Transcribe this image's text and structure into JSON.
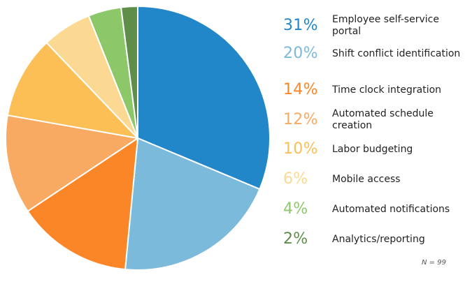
{
  "chart_data": {
    "type": "pie",
    "categories": [
      "Employee self-service portal",
      "Shift conflict identification",
      "Time clock integration",
      "Automated schedule creation",
      "Labor budgeting",
      "Mobile access",
      "Automated notifications",
      "Analytics/reporting"
    ],
    "values": [
      31,
      20,
      14,
      12,
      10,
      6,
      4,
      2
    ],
    "value_labels": [
      "31%",
      "20%",
      "14%",
      "12%",
      "10%",
      "6%",
      "4%",
      "2%"
    ],
    "colors": [
      "#2187c8",
      "#7bbadb",
      "#fb8628",
      "#f8a962",
      "#fbbf55",
      "#fbd993",
      "#8cc86a",
      "#5e8e4a"
    ],
    "start_angle": "top",
    "direction": "clockwise",
    "legend_placement": "right",
    "note": "N = 99"
  }
}
